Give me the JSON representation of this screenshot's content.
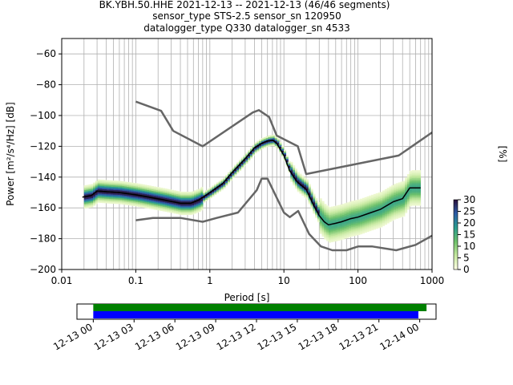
{
  "title_lines": [
    "BK.YBH.50.HHE   2021-12-13 -- 2021-12-13  (46/46 segments)",
    "sensor_type STS-2.5 sensor_sn 120950",
    "datalogger_type Q330 datalogger_sn 4533"
  ],
  "colors": {
    "model": "#666666",
    "mode": "#000000",
    "bar_green": "#008000",
    "bar_blue": "#0000ff",
    "grid": "#b0b0b0"
  },
  "chart_data": [
    {
      "type": "heatmap",
      "xlabel": "Period [s]",
      "ylabel": "Power [m²/s⁴/Hz] [dB]",
      "xscale": "log",
      "xlim": [
        0.01,
        1000
      ],
      "ylim": [
        -200,
        -50
      ],
      "xticks": [
        {
          "value": 0.01,
          "label": "0.01"
        },
        {
          "value": 0.1,
          "label": "0.1"
        },
        {
          "value": 1,
          "label": "1"
        },
        {
          "value": 10,
          "label": "10"
        },
        {
          "value": 100,
          "label": "100"
        },
        {
          "value": 1000,
          "label": "1000"
        }
      ],
      "yticks": [
        {
          "value": -200,
          "label": "−200"
        },
        {
          "value": -180,
          "label": "−180"
        },
        {
          "value": -160,
          "label": "−160"
        },
        {
          "value": -140,
          "label": "−140"
        },
        {
          "value": -120,
          "label": "−120"
        },
        {
          "value": -100,
          "label": "−100"
        },
        {
          "value": -80,
          "label": "−80"
        },
        {
          "value": -60,
          "label": "−60"
        }
      ],
      "grid": true,
      "series": [
        {
          "role": "high-noise-model",
          "points": [
            [
              0.1,
              -91
            ],
            [
              0.22,
              -97
            ],
            [
              0.32,
              -110
            ],
            [
              0.8,
              -120
            ],
            [
              3.8,
              -98
            ],
            [
              4.6,
              -96.5
            ],
            [
              6.3,
              -101
            ],
            [
              8,
              -113
            ],
            [
              15.4,
              -120
            ],
            [
              20,
              -138
            ],
            [
              354.8,
              -126
            ],
            [
              1000,
              -111
            ]
          ]
        },
        {
          "role": "low-noise-model",
          "points": [
            [
              0.1,
              -168
            ],
            [
              0.17,
              -166.5
            ],
            [
              0.4,
              -166.5
            ],
            [
              0.8,
              -169
            ],
            [
              1.24,
              -166.5
            ],
            [
              2.4,
              -163
            ],
            [
              4.3,
              -148.5
            ],
            [
              5,
              -141
            ],
            [
              6,
              -141
            ],
            [
              10,
              -163
            ],
            [
              12,
              -166
            ],
            [
              15.6,
              -162
            ],
            [
              21.9,
              -177
            ],
            [
              31.6,
              -185
            ],
            [
              45,
              -187.5
            ],
            [
              70,
              -187.5
            ],
            [
              101,
              -185
            ],
            [
              154,
              -185
            ],
            [
              328,
              -187.5
            ],
            [
              600,
              -184
            ],
            [
              1000,
              -178
            ]
          ]
        },
        {
          "role": "mode",
          "points": [
            [
              0.019,
              -153
            ],
            [
              0.025,
              -152
            ],
            [
              0.03,
              -149
            ],
            [
              0.04,
              -149.5
            ],
            [
              0.06,
              -150
            ],
            [
              0.1,
              -151.5
            ],
            [
              0.15,
              -153
            ],
            [
              0.25,
              -155
            ],
            [
              0.4,
              -157
            ],
            [
              0.55,
              -157
            ],
            [
              0.7,
              -155
            ],
            [
              1,
              -150
            ],
            [
              1.5,
              -144
            ],
            [
              2,
              -137
            ],
            [
              3,
              -128
            ],
            [
              4,
              -121
            ],
            [
              5,
              -118
            ],
            [
              6,
              -116.5
            ],
            [
              7,
              -116
            ],
            [
              8,
              -118
            ],
            [
              10,
              -126
            ],
            [
              12,
              -136
            ],
            [
              15,
              -143
            ],
            [
              20,
              -148
            ],
            [
              25,
              -158
            ],
            [
              30,
              -165
            ],
            [
              35,
              -169
            ],
            [
              40,
              -171
            ],
            [
              50,
              -170
            ],
            [
              60,
              -169
            ],
            [
              80,
              -167
            ],
            [
              100,
              -166
            ],
            [
              150,
              -163
            ],
            [
              200,
              -161
            ],
            [
              300,
              -156
            ],
            [
              400,
              -154
            ],
            [
              500,
              -147
            ],
            [
              700,
              -147
            ]
          ]
        }
      ],
      "colorbar": {
        "label": "[%]",
        "range": [
          0,
          30
        ],
        "ticks": [
          0,
          5,
          10,
          15,
          20,
          25,
          30
        ]
      }
    },
    {
      "type": "bar",
      "role": "data-coverage",
      "xticks": [
        "12-13 00",
        "12-13 03",
        "12-13 06",
        "12-13 09",
        "12-13 12",
        "12-13 15",
        "12-13 18",
        "12-13 21",
        "12-14 00"
      ],
      "series": [
        {
          "row": "upper",
          "color": "green",
          "start_hours": 0,
          "end_hours": 24.5
        },
        {
          "row": "lower",
          "color": "blue",
          "start_hours": 0,
          "end_hours": 23.9
        }
      ],
      "xlim_hours": [
        -1.2,
        25.2
      ]
    }
  ]
}
